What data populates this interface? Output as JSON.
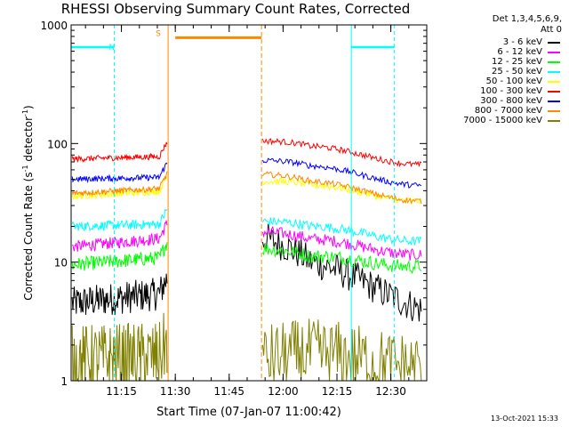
{
  "chart_data": {
    "type": "line",
    "title": "RHESSI Observing Summary Count Rates, Corrected",
    "xlabel": "Start Time (07-Jan-07 11:00:42)",
    "ylabel": "Corrected Count Rate (s",
    "ylabel_sup1": "-1",
    "ylabel_mid": " detector",
    "ylabel_sup2": "-1",
    "ylabel_end": ")",
    "ylog": true,
    "ylim": [
      1,
      1000
    ],
    "xlim": [
      "11:01",
      "12:40"
    ],
    "x_ticks": [
      "11:15",
      "11:30",
      "11:45",
      "12:00",
      "12:15",
      "12:30"
    ],
    "y_ticks": [
      "1",
      "10",
      "100",
      "1000"
    ],
    "detector_info": "Det 1,3,4,5,6,9,",
    "attenuator": "Att 0",
    "gap": [
      "11:28",
      "11:54"
    ],
    "series": [
      {
        "name": "3 - 6 keV",
        "color": "#000000",
        "pre_start": 4.5,
        "pre_end": 5.5,
        "post_start": 16,
        "post_mid": 9,
        "post_end": 4.5,
        "noise": 0.14
      },
      {
        "name": "6 - 12 keV",
        "color": "#ff00ff",
        "pre_start": 13.5,
        "pre_end": 16,
        "post_start": 18,
        "post_mid": 14,
        "post_end": 13,
        "noise": 0.05
      },
      {
        "name": "12 - 25 keV",
        "color": "#00ff00",
        "pre_start": 9.5,
        "pre_end": 11,
        "post_start": 13,
        "post_mid": 10,
        "post_end": 10.5,
        "noise": 0.06
      },
      {
        "name": "25 - 50 keV",
        "color": "#00ffff",
        "pre_start": 20,
        "pre_end": 21,
        "post_start": 22,
        "post_mid": 18,
        "post_end": 17,
        "noise": 0.04
      },
      {
        "name": "50 - 100 keV",
        "color": "#ffff00",
        "pre_start": 36,
        "pre_end": 40,
        "post_start": 48,
        "post_mid": 40,
        "post_end": 37,
        "noise": 0.03
      },
      {
        "name": "100 - 300 keV",
        "color": "#ff0000",
        "pre_start": 74,
        "pre_end": 78,
        "post_start": 105,
        "post_mid": 85,
        "post_end": 75,
        "noise": 0.025
      },
      {
        "name": "300 - 800 keV",
        "color": "#0000ff",
        "pre_start": 50,
        "pre_end": 52,
        "post_start": 72,
        "post_mid": 58,
        "post_end": 50,
        "noise": 0.025
      },
      {
        "name": "800 - 7000 keV",
        "color": "#ff8800",
        "pre_start": 38,
        "pre_end": 42,
        "post_start": 55,
        "post_mid": 43,
        "post_end": 37,
        "noise": 0.025
      },
      {
        "name": "7000 - 15000 keV",
        "color": "#808000",
        "pre_start": 1.5,
        "pre_end": 1.6,
        "post_start": 1.5,
        "post_mid": 1.5,
        "post_end": 1.5,
        "noise": 0.3
      }
    ],
    "annotations": {
      "N_label": "N",
      "S_label": "S",
      "night_segments": [
        [
          "11:01",
          "11:13"
        ],
        [
          "12:19",
          "12:31"
        ]
      ],
      "night_lines": [
        "11:13",
        "12:19",
        "12:31"
      ],
      "saa_segment": [
        "11:30",
        "11:54"
      ],
      "saa_lines": [
        "11:28",
        "11:54"
      ],
      "flag_level": 650,
      "saa_level": 780
    }
  },
  "footer": {
    "date": "13-Oct-2021 15:33"
  }
}
